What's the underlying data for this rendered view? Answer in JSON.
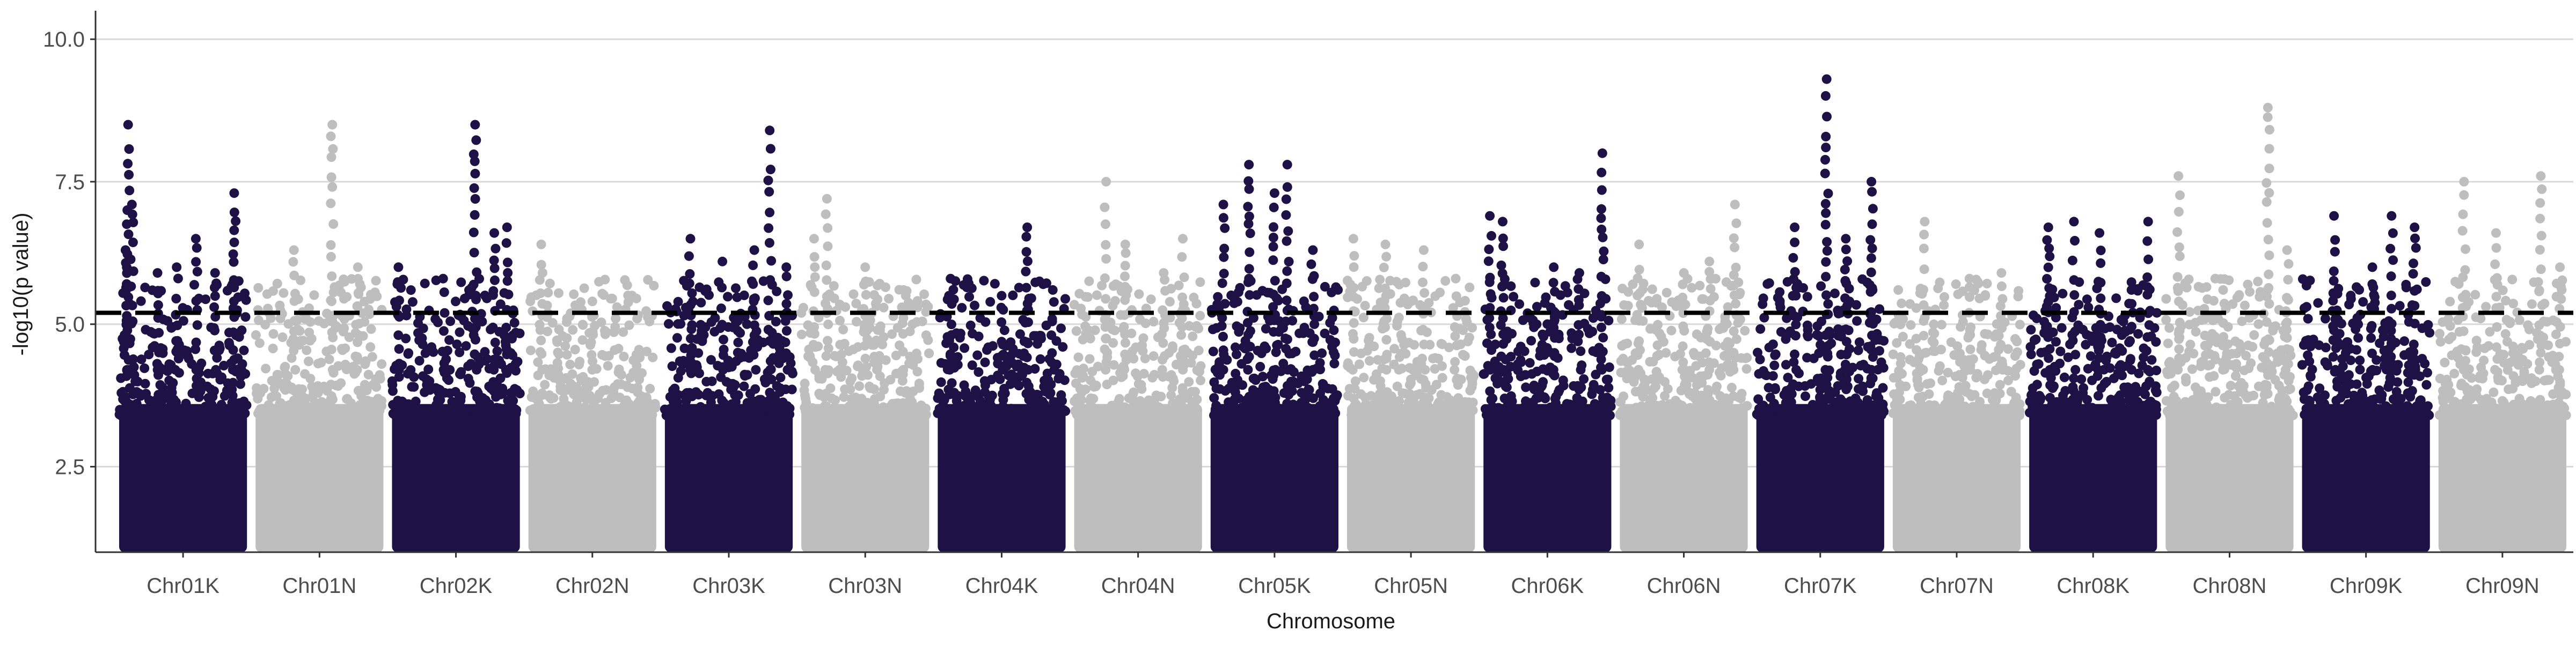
{
  "chart_data": {
    "type": "scatter",
    "title": "",
    "xlabel": "Chromosome",
    "ylabel": "-log10(p value)",
    "ylim": [
      1.0,
      10.5
    ],
    "yticks": [
      2.5,
      5.0,
      7.5,
      10.0
    ],
    "ytick_labels": [
      "2.5",
      "5.0",
      "7.5",
      "10.0"
    ],
    "grid": "horizontal major gridlines",
    "threshold": 5.2,
    "threshold_style": "dashed black line",
    "colors": {
      "K": "#1d1145",
      "N": "#bebebe",
      "grid": "#d9d9d9",
      "threshold": "#000000"
    },
    "categories": [
      "Chr01K",
      "Chr01N",
      "Chr02K",
      "Chr02N",
      "Chr03K",
      "Chr03N",
      "Chr04K",
      "Chr04N",
      "Chr05K",
      "Chr05N",
      "Chr06K",
      "Chr06N",
      "Chr07K",
      "Chr07N",
      "Chr08K",
      "Chr08N",
      "Chr09K",
      "Chr09N"
    ],
    "series": [
      {
        "chromosome": "Chr01K",
        "peaks": [
          [
            0.07,
            8.5
          ],
          [
            0.05,
            6.3
          ],
          [
            0.1,
            7.1
          ],
          [
            0.3,
            5.9
          ],
          [
            0.45,
            6.0
          ],
          [
            0.6,
            6.5
          ],
          [
            0.75,
            5.9
          ],
          [
            0.9,
            7.3
          ]
        ]
      },
      {
        "chromosome": "Chr01N",
        "peaks": [
          [
            0.3,
            6.3
          ],
          [
            0.6,
            8.5
          ],
          [
            0.8,
            6.0
          ]
        ]
      },
      {
        "chromosome": "Chr02K",
        "peaks": [
          [
            0.05,
            6.0
          ],
          [
            0.4,
            5.8
          ],
          [
            0.65,
            8.5
          ],
          [
            0.8,
            6.6
          ],
          [
            0.9,
            6.7
          ]
        ]
      },
      {
        "chromosome": "Chr02N",
        "peaks": [
          [
            0.1,
            6.4
          ],
          [
            0.5,
            5.4
          ]
        ]
      },
      {
        "chromosome": "Chr03K",
        "peaks": [
          [
            0.2,
            6.5
          ],
          [
            0.45,
            6.1
          ],
          [
            0.7,
            6.3
          ],
          [
            0.82,
            8.4
          ],
          [
            0.95,
            6.0
          ]
        ]
      },
      {
        "chromosome": "Chr03N",
        "peaks": [
          [
            0.1,
            6.5
          ],
          [
            0.2,
            7.2
          ],
          [
            0.5,
            6.0
          ],
          [
            0.8,
            5.6
          ]
        ]
      },
      {
        "chromosome": "Chr04K",
        "peaks": [
          [
            0.1,
            5.8
          ],
          [
            0.5,
            5.5
          ],
          [
            0.7,
            6.7
          ],
          [
            0.9,
            5.6
          ]
        ]
      },
      {
        "chromosome": "Chr04N",
        "peaks": [
          [
            0.25,
            7.5
          ],
          [
            0.4,
            6.4
          ],
          [
            0.7,
            5.9
          ],
          [
            0.85,
            6.5
          ]
        ]
      },
      {
        "chromosome": "Chr05K",
        "peaks": [
          [
            0.1,
            7.1
          ],
          [
            0.3,
            7.8
          ],
          [
            0.5,
            7.3
          ],
          [
            0.6,
            7.8
          ],
          [
            0.8,
            6.3
          ]
        ]
      },
      {
        "chromosome": "Chr05N",
        "peaks": [
          [
            0.05,
            6.5
          ],
          [
            0.3,
            6.4
          ],
          [
            0.6,
            6.3
          ],
          [
            0.85,
            5.8
          ]
        ]
      },
      {
        "chromosome": "Chr06K",
        "peaks": [
          [
            0.05,
            6.9
          ],
          [
            0.15,
            6.8
          ],
          [
            0.55,
            6.0
          ],
          [
            0.75,
            5.9
          ],
          [
            0.93,
            8.0
          ]
        ]
      },
      {
        "chromosome": "Chr06N",
        "peaks": [
          [
            0.15,
            6.4
          ],
          [
            0.5,
            5.9
          ],
          [
            0.7,
            6.1
          ],
          [
            0.9,
            7.1
          ]
        ]
      },
      {
        "chromosome": "Chr07K",
        "peaks": [
          [
            0.3,
            6.7
          ],
          [
            0.55,
            9.3
          ],
          [
            0.7,
            6.5
          ],
          [
            0.9,
            7.5
          ]
        ]
      },
      {
        "chromosome": "Chr07N",
        "peaks": [
          [
            0.25,
            6.8
          ],
          [
            0.6,
            5.8
          ],
          [
            0.85,
            5.9
          ]
        ]
      },
      {
        "chromosome": "Chr08K",
        "peaks": [
          [
            0.15,
            6.7
          ],
          [
            0.35,
            6.8
          ],
          [
            0.55,
            6.6
          ],
          [
            0.8,
            5.6
          ],
          [
            0.93,
            6.8
          ]
        ]
      },
      {
        "chromosome": "Chr08N",
        "peaks": [
          [
            0.1,
            7.6
          ],
          [
            0.45,
            5.6
          ],
          [
            0.8,
            8.8
          ],
          [
            0.95,
            6.3
          ]
        ]
      },
      {
        "chromosome": "Chr09K",
        "peaks": [
          [
            0.25,
            6.9
          ],
          [
            0.55,
            6.0
          ],
          [
            0.7,
            6.9
          ],
          [
            0.88,
            6.7
          ]
        ]
      },
      {
        "chromosome": "Chr09N",
        "peaks": [
          [
            0.2,
            7.5
          ],
          [
            0.45,
            6.6
          ],
          [
            0.8,
            7.6
          ],
          [
            0.95,
            6.0
          ]
        ]
      }
    ]
  }
}
